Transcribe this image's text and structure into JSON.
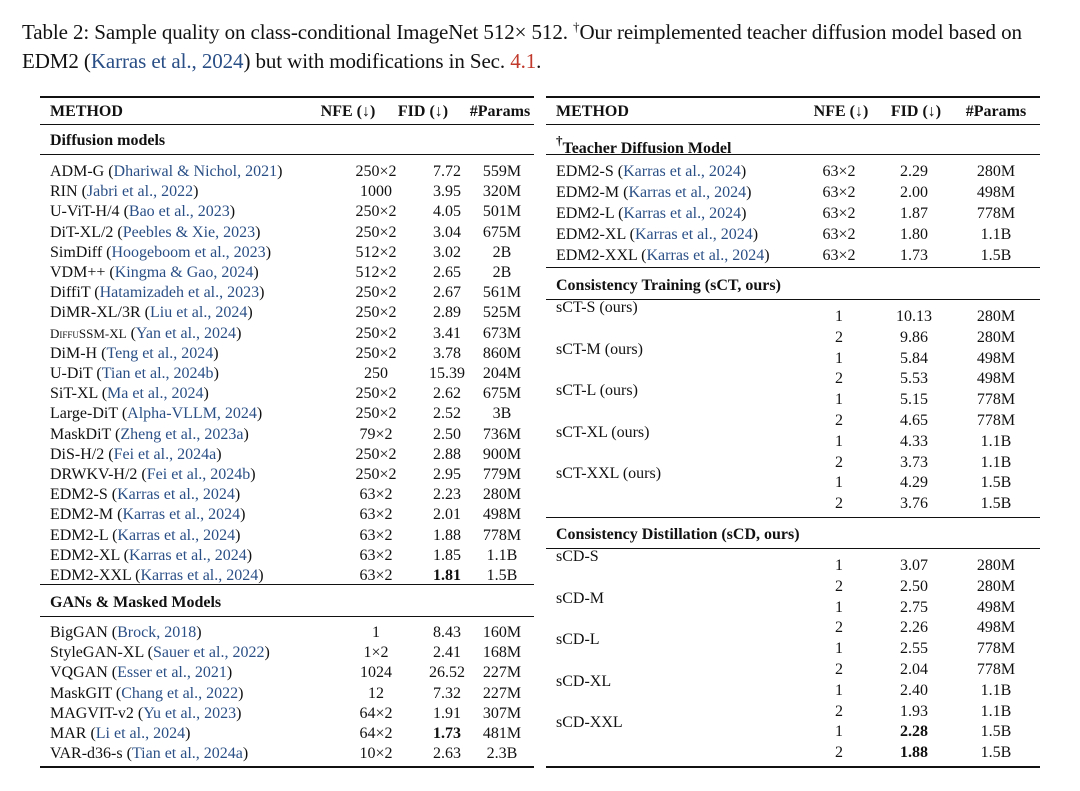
{
  "caption": {
    "label": "Table 2:",
    "text_a": "Sample quality on class-conditional ImageNet 512× 512.",
    "dagger": "†",
    "text_b": "Our reimplemented teacher diffusion model based on EDM2 (",
    "cite": "Karras et al., 2024",
    "text_c": ") but with modifications in Sec.",
    "ref": "4.1",
    "end": "."
  },
  "headers": {
    "method": "METHOD",
    "nfe": "NFE (↓)",
    "fid": "FID (↓)",
    "params": "#Params"
  },
  "left_sections": [
    {
      "title": "Diffusion models",
      "rows": [
        {
          "name": "ADM-G",
          "cite": "Dhariwal & Nichol, 2021",
          "nfe": "250×2",
          "fid": "7.72",
          "params": "559M"
        },
        {
          "name": "RIN",
          "cite": "Jabri et al., 2022",
          "nfe": "1000",
          "fid": "3.95",
          "params": "320M"
        },
        {
          "name": "U-ViT-H/4",
          "cite": "Bao et al., 2023",
          "nfe": "250×2",
          "fid": "4.05",
          "params": "501M"
        },
        {
          "name": "DiT-XL/2",
          "cite": "Peebles & Xie, 2023",
          "nfe": "250×2",
          "fid": "3.04",
          "params": "675M"
        },
        {
          "name": "SimDiff",
          "cite": "Hoogeboom et al., 2023",
          "nfe": "512×2",
          "fid": "3.02",
          "params": "2B"
        },
        {
          "name": "VDM++",
          "cite": "Kingma & Gao, 2024",
          "nfe": "512×2",
          "fid": "2.65",
          "params": "2B"
        },
        {
          "name": "DiffiT",
          "cite": "Hatamizadeh et al., 2023",
          "nfe": "250×2",
          "fid": "2.67",
          "params": "561M"
        },
        {
          "name": "DiMR-XL/3R",
          "cite": "Liu et al., 2024",
          "nfe": "250×2",
          "fid": "2.89",
          "params": "525M"
        },
        {
          "name": "DiffuSSM-XL",
          "cite": "Yan et al., 2024",
          "nfe": "250×2",
          "fid": "3.41",
          "params": "673M",
          "smallcaps": true
        },
        {
          "name": "DiM-H",
          "cite": "Teng et al., 2024",
          "nfe": "250×2",
          "fid": "3.78",
          "params": "860M"
        },
        {
          "name": "U-DiT",
          "cite": "Tian et al., 2024b",
          "nfe": "250",
          "fid": "15.39",
          "params": "204M"
        },
        {
          "name": "SiT-XL",
          "cite": "Ma et al., 2024",
          "nfe": "250×2",
          "fid": "2.62",
          "params": "675M"
        },
        {
          "name": "Large-DiT",
          "cite": "Alpha-VLLM, 2024",
          "nfe": "250×2",
          "fid": "2.52",
          "params": "3B"
        },
        {
          "name": "MaskDiT",
          "cite": "Zheng et al., 2023a",
          "nfe": "79×2",
          "fid": "2.50",
          "params": "736M"
        },
        {
          "name": "DiS-H/2",
          "cite": "Fei et al., 2024a",
          "nfe": "250×2",
          "fid": "2.88",
          "params": "900M"
        },
        {
          "name": "DRWKV-H/2",
          "cite": "Fei et al., 2024b",
          "nfe": "250×2",
          "fid": "2.95",
          "params": "779M"
        },
        {
          "name": "EDM2-S",
          "cite": "Karras et al., 2024",
          "nfe": "63×2",
          "fid": "2.23",
          "params": "280M"
        },
        {
          "name": "EDM2-M",
          "cite": "Karras et al., 2024",
          "nfe": "63×2",
          "fid": "2.01",
          "params": "498M"
        },
        {
          "name": "EDM2-L",
          "cite": "Karras et al., 2024",
          "nfe": "63×2",
          "fid": "1.88",
          "params": "778M"
        },
        {
          "name": "EDM2-XL",
          "cite": "Karras et al., 2024",
          "nfe": "63×2",
          "fid": "1.85",
          "params": "1.1B"
        },
        {
          "name": "EDM2-XXL",
          "cite": "Karras et al., 2024",
          "nfe": "63×2",
          "fid": "1.81",
          "params": "1.5B",
          "bold_fid": true
        }
      ]
    },
    {
      "title": "GANs & Masked Models",
      "rows": [
        {
          "name": "BigGAN",
          "cite": "Brock, 2018",
          "nfe": "1",
          "fid": "8.43",
          "params": "160M"
        },
        {
          "name": "StyleGAN-XL",
          "cite": "Sauer et al., 2022",
          "nfe": "1×2",
          "fid": "2.41",
          "params": "168M"
        },
        {
          "name": "VQGAN",
          "cite": "Esser et al., 2021",
          "nfe": "1024",
          "fid": "26.52",
          "params": "227M"
        },
        {
          "name": "MaskGIT",
          "cite": "Chang et al., 2022",
          "nfe": "12",
          "fid": "7.32",
          "params": "227M"
        },
        {
          "name": "MAGVIT-v2",
          "cite": "Yu et al., 2023",
          "nfe": "64×2",
          "fid": "1.91",
          "params": "307M"
        },
        {
          "name": "MAR",
          "cite": "Li et al., 2024",
          "nfe": "64×2",
          "fid": "1.73",
          "params": "481M",
          "bold_fid": true
        },
        {
          "name": "VAR-d36-s",
          "cite": "Tian et al., 2024a",
          "nfe": "10×2",
          "fid": "2.63",
          "params": "2.3B"
        }
      ]
    }
  ],
  "right_teacher": {
    "dagger": "†",
    "title": "Teacher Diffusion Model",
    "rows": [
      {
        "name": "EDM2-S",
        "cite": "Karras et al., 2024",
        "nfe": "63×2",
        "fid": "2.29",
        "params": "280M"
      },
      {
        "name": "EDM2-M",
        "cite": "Karras et al., 2024",
        "nfe": "63×2",
        "fid": "2.00",
        "params": "498M"
      },
      {
        "name": "EDM2-L",
        "cite": "Karras et al., 2024",
        "nfe": "63×2",
        "fid": "1.87",
        "params": "778M"
      },
      {
        "name": "EDM2-XL",
        "cite": "Karras et al., 2024",
        "nfe": "63×2",
        "fid": "1.80",
        "params": "1.1B"
      },
      {
        "name": "EDM2-XXL",
        "cite": "Karras et al., 2024",
        "nfe": "63×2",
        "fid": "1.73",
        "params": "1.5B"
      }
    ]
  },
  "right_groups": [
    {
      "title": "Consistency Training (sCT, ours)",
      "models": [
        {
          "name": "sCT-S (ours)",
          "steps": [
            {
              "nfe": "1",
              "fid": "10.13",
              "params": "280M"
            },
            {
              "nfe": "2",
              "fid": "9.86",
              "params": "280M"
            }
          ]
        },
        {
          "name": "sCT-M (ours)",
          "steps": [
            {
              "nfe": "1",
              "fid": "5.84",
              "params": "498M"
            },
            {
              "nfe": "2",
              "fid": "5.53",
              "params": "498M"
            }
          ]
        },
        {
          "name": "sCT-L (ours)",
          "steps": [
            {
              "nfe": "1",
              "fid": "5.15",
              "params": "778M"
            },
            {
              "nfe": "2",
              "fid": "4.65",
              "params": "778M"
            }
          ]
        },
        {
          "name": "sCT-XL (ours)",
          "steps": [
            {
              "nfe": "1",
              "fid": "4.33",
              "params": "1.1B"
            },
            {
              "nfe": "2",
              "fid": "3.73",
              "params": "1.1B"
            }
          ]
        },
        {
          "name": "sCT-XXL (ours)",
          "steps": [
            {
              "nfe": "1",
              "fid": "4.29",
              "params": "1.5B"
            },
            {
              "nfe": "2",
              "fid": "3.76",
              "params": "1.5B"
            }
          ]
        }
      ]
    },
    {
      "title": "Consistency Distillation (sCD, ours)",
      "models": [
        {
          "name": "sCD-S",
          "steps": [
            {
              "nfe": "1",
              "fid": "3.07",
              "params": "280M"
            },
            {
              "nfe": "2",
              "fid": "2.50",
              "params": "280M"
            }
          ]
        },
        {
          "name": "sCD-M",
          "steps": [
            {
              "nfe": "1",
              "fid": "2.75",
              "params": "498M"
            },
            {
              "nfe": "2",
              "fid": "2.26",
              "params": "498M"
            }
          ]
        },
        {
          "name": "sCD-L",
          "steps": [
            {
              "nfe": "1",
              "fid": "2.55",
              "params": "778M"
            },
            {
              "nfe": "2",
              "fid": "2.04",
              "params": "778M"
            }
          ]
        },
        {
          "name": "sCD-XL",
          "steps": [
            {
              "nfe": "1",
              "fid": "2.40",
              "params": "1.1B"
            },
            {
              "nfe": "2",
              "fid": "1.93",
              "params": "1.1B"
            }
          ]
        },
        {
          "name": "sCD-XXL",
          "steps": [
            {
              "nfe": "1",
              "fid": "2.28",
              "params": "1.5B",
              "bold_fid": true
            },
            {
              "nfe": "2",
              "fid": "1.88",
              "params": "1.5B",
              "bold_fid": true
            }
          ]
        }
      ]
    }
  ]
}
